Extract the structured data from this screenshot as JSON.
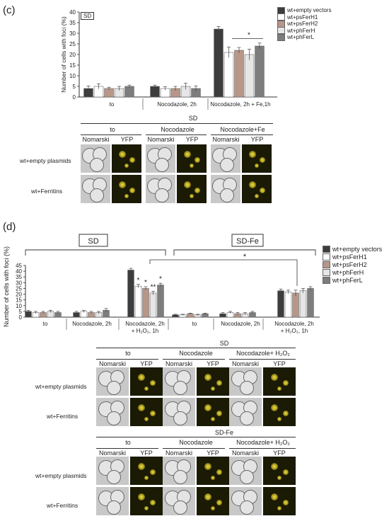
{
  "panel_c": {
    "letter": "(c)",
    "box_label": "SD",
    "ylabel": "Number of cells with foci (%)",
    "legend": [
      "wt+empty vectors",
      "wt+psFerH1",
      "wt+psFerH2",
      "wt+phFerH",
      "wt+phFerL"
    ],
    "significance": "*",
    "micro": {
      "title": "SD",
      "conditions": [
        "to",
        "Nocodazole",
        "Nocodazole+Fe"
      ],
      "channels": [
        "Nomarski",
        "YFP"
      ],
      "rows": [
        "wt+empty plasmids",
        "wt+Ferritins"
      ]
    }
  },
  "panel_d": {
    "letter": "(d)",
    "group_labels": [
      "SD",
      "SD-Fe"
    ],
    "ylabel": "Number of cells with foci (%)",
    "legend": [
      "wt+empty vectors",
      "wt+psFerH1",
      "wt+psFerH2",
      "wt+phFerH",
      "wt+phFerL"
    ],
    "bracket_star": "*",
    "micro_sd": {
      "title": "SD",
      "conditions": [
        "to",
        "Nocodazole",
        "Nocodazole+ H₂O₂"
      ],
      "channels": [
        "Nomarski",
        "YFP"
      ],
      "rows": [
        "wt+empty plasmids",
        "wt+Ferritins"
      ]
    },
    "micro_sdfe": {
      "title": "SD-Fe",
      "conditions": [
        "to",
        "Nocodazole",
        "Nocodazole+ H₂O₂"
      ],
      "channels": [
        "Nomarski",
        "YFP"
      ],
      "rows": [
        "wt+empty plasmids",
        "wt+Ferritins"
      ]
    }
  },
  "colors": {
    "series": [
      "#3d3d3d",
      "#ffffff",
      "#b89688",
      "#e6e6e6",
      "#7d7d7d"
    ]
  },
  "chart_data": [
    {
      "type": "bar",
      "ylabel": "Number of cells with foci (%)",
      "ylim": [
        0,
        40
      ],
      "yticks": [
        0,
        5,
        10,
        15,
        20,
        25,
        30,
        35,
        40
      ],
      "categories": [
        "to",
        "Nocodazole, 2h",
        "Nocodazole, 2h + Fe,1h"
      ],
      "series": [
        {
          "name": "wt+empty vectors",
          "values": [
            4,
            5,
            32
          ],
          "errors": [
            1.2,
            0.6,
            1.2
          ]
        },
        {
          "name": "wt+psFerH1",
          "values": [
            5,
            4,
            21
          ],
          "errors": [
            1.2,
            0.8,
            2.5
          ]
        },
        {
          "name": "wt+psFerH2",
          "values": [
            4,
            4,
            22
          ],
          "errors": [
            0.6,
            1.0,
            1.3
          ]
        },
        {
          "name": "wt+phFerH",
          "values": [
            4,
            5,
            20
          ],
          "errors": [
            1.0,
            1.5,
            2.5
          ]
        },
        {
          "name": "wt+phFerL",
          "values": [
            5,
            4,
            24
          ],
          "errors": [
            0.6,
            1.2,
            1.4
          ]
        }
      ],
      "annotations": [
        "*"
      ]
    },
    {
      "type": "bar",
      "ylabel": "Number of cells with foci (%)",
      "ylim": [
        0,
        45
      ],
      "yticks": [
        0,
        5,
        10,
        15,
        20,
        25,
        30,
        35,
        40,
        45
      ],
      "categories": [
        "to",
        "Nocodazole, 2h",
        "Nocodazole, 2h + H₂O₂, 1h",
        "to",
        "Nocodazole, 2h",
        "Nocodazole, 2h + H₂O₂, 1h"
      ],
      "groups": [
        "SD",
        "SD",
        "SD",
        "SD-Fe",
        "SD-Fe",
        "SD-Fe"
      ],
      "series": [
        {
          "name": "wt+empty vectors",
          "values": [
            5,
            4,
            41,
            2,
            3,
            23
          ],
          "errors": [
            1,
            1,
            1.5,
            0.5,
            1,
            1.5
          ]
        },
        {
          "name": "wt+psFerH1",
          "values": [
            4,
            5,
            27,
            2,
            4,
            22
          ],
          "errors": [
            1,
            1,
            1.5,
            0.5,
            1,
            1.5
          ]
        },
        {
          "name": "wt+psFerH2",
          "values": [
            4,
            4,
            25,
            3,
            3,
            21
          ],
          "errors": [
            1,
            1,
            1.5,
            0.5,
            1,
            2.5
          ]
        },
        {
          "name": "wt+phFerH",
          "values": [
            5,
            4,
            21,
            2,
            3,
            23
          ],
          "errors": [
            1,
            1,
            1.5,
            0.5,
            1,
            2
          ]
        },
        {
          "name": "wt+phFerL",
          "values": [
            4,
            6,
            28,
            3,
            4,
            25
          ],
          "errors": [
            1,
            1.5,
            1.5,
            0.5,
            1,
            1.5
          ]
        }
      ],
      "annotations": [
        "*",
        "*",
        "**",
        "*"
      ]
    }
  ]
}
